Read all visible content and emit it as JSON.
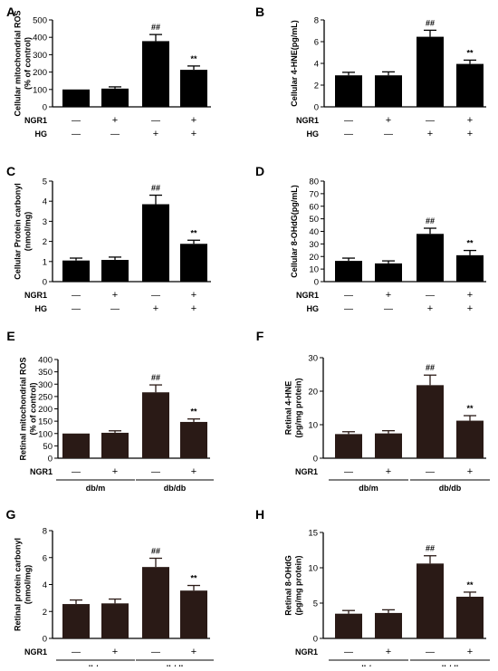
{
  "figure": {
    "sign_minus": "—",
    "sign_plus": "+",
    "colors": {
      "black_bar": "#000000",
      "brown_bar": "#2a1a16"
    }
  },
  "chart_data": [
    {
      "id": "A",
      "panel_letter": "A",
      "type": "bar",
      "ylabel": "Cellular mitochondrial ROS (% of control)",
      "ylabel_lines": [
        "Cellular mitochondrial ROS",
        "(% of control)"
      ],
      "ylim": [
        0,
        500
      ],
      "yticks": [
        0,
        100,
        200,
        300,
        400,
        500
      ],
      "grid": false,
      "values": [
        100,
        105,
        378,
        213
      ],
      "errors": [
        0,
        10,
        38,
        22
      ],
      "annotations": [
        "",
        "",
        "##",
        "**"
      ],
      "bar_color": "#000000",
      "factors": [
        {
          "label": "NGR1",
          "signs": [
            "—",
            "+",
            "—",
            "+"
          ]
        },
        {
          "label": "HG",
          "signs": [
            "—",
            "—",
            "+",
            "+"
          ]
        }
      ],
      "groups": []
    },
    {
      "id": "B",
      "panel_letter": "B",
      "type": "bar",
      "ylabel": "Cellular 4-HNE(pg/mL)",
      "ylabel_lines": [
        "Cellular 4-HNE(pg/mL)"
      ],
      "ylim": [
        0,
        8
      ],
      "yticks": [
        0,
        2,
        4,
        6,
        8
      ],
      "grid": false,
      "values": [
        2.9,
        2.9,
        6.45,
        3.95
      ],
      "errors": [
        0.28,
        0.32,
        0.6,
        0.35
      ],
      "annotations": [
        "",
        "",
        "##",
        "**"
      ],
      "bar_color": "#000000",
      "factors": [
        {
          "label": "NGR1",
          "signs": [
            "—",
            "+",
            "—",
            "+"
          ]
        },
        {
          "label": "HG",
          "signs": [
            "—",
            "—",
            "+",
            "+"
          ]
        }
      ],
      "groups": []
    },
    {
      "id": "C",
      "panel_letter": "C",
      "type": "bar",
      "ylabel": "Cellular Protein carbonyl (nmol/mg)",
      "ylabel_lines": [
        "Cellular Protein carbonyl",
        "(nmol/mg)"
      ],
      "ylim": [
        0,
        5
      ],
      "yticks": [
        0,
        1,
        2,
        3,
        4,
        5
      ],
      "grid": false,
      "values": [
        1.05,
        1.08,
        3.85,
        1.88
      ],
      "errors": [
        0.12,
        0.14,
        0.45,
        0.18
      ],
      "annotations": [
        "",
        "",
        "##",
        "**"
      ],
      "bar_color": "#000000",
      "factors": [
        {
          "label": "NGR1",
          "signs": [
            "—",
            "+",
            "—",
            "+"
          ]
        },
        {
          "label": "HG",
          "signs": [
            "—",
            "—",
            "+",
            "+"
          ]
        }
      ],
      "groups": []
    },
    {
      "id": "D",
      "panel_letter": "D",
      "type": "bar",
      "ylabel": "Cellular 8-OHdG(pg/mL)",
      "ylabel_lines": [
        "Cellular 8-OHdG(pg/mL)"
      ],
      "ylim": [
        0,
        80
      ],
      "yticks": [
        0,
        10,
        20,
        30,
        40,
        50,
        60,
        70,
        80
      ],
      "grid": false,
      "values": [
        16.5,
        14.5,
        38,
        21
      ],
      "errors": [
        2.2,
        2,
        4.5,
        3.8
      ],
      "annotations": [
        "",
        "",
        "##",
        "**"
      ],
      "bar_color": "#000000",
      "factors": [
        {
          "label": "NGR1",
          "signs": [
            "—",
            "+",
            "—",
            "+"
          ]
        },
        {
          "label": "HG",
          "signs": [
            "—",
            "—",
            "+",
            "+"
          ]
        }
      ],
      "groups": []
    },
    {
      "id": "E",
      "panel_letter": "E",
      "type": "bar",
      "ylabel": "Retinal mitochondrial ROS (% of control)",
      "ylabel_lines": [
        "Retinal mitochondrial ROS",
        "(% of control)"
      ],
      "ylim": [
        0,
        400
      ],
      "yticks": [
        0,
        50,
        100,
        150,
        200,
        250,
        300,
        350,
        400
      ],
      "grid": false,
      "values": [
        100,
        103,
        267,
        147
      ],
      "errors": [
        0,
        8,
        30,
        12
      ],
      "annotations": [
        "",
        "",
        "##",
        "**"
      ],
      "bar_color": "#2a1a16",
      "factors": [
        {
          "label": "NGR1",
          "signs": [
            "—",
            "+",
            "—",
            "+"
          ]
        }
      ],
      "groups": [
        "db/m",
        "db/db"
      ]
    },
    {
      "id": "F",
      "panel_letter": "F",
      "type": "bar",
      "ylabel": "Retinal 4-HNE (pg/mg protein)",
      "ylabel_lines": [
        "Retinal 4-HNE",
        "(pg/mg protein)"
      ],
      "ylim": [
        0,
        30
      ],
      "yticks": [
        0,
        10,
        20,
        30
      ],
      "grid": false,
      "values": [
        7.2,
        7.4,
        21.8,
        11.2
      ],
      "errors": [
        0.7,
        0.8,
        3,
        1.5
      ],
      "annotations": [
        "",
        "",
        "##",
        "**"
      ],
      "bar_color": "#2a1a16",
      "factors": [
        {
          "label": "NGR1",
          "signs": [
            "—",
            "+",
            "—",
            "+"
          ]
        }
      ],
      "groups": [
        "db/m",
        "db/db"
      ]
    },
    {
      "id": "G",
      "panel_letter": "G",
      "type": "bar",
      "ylabel": "Retinal protein carbonyl (nmol/mg)",
      "ylabel_lines": [
        "Retinal protein carbonyl",
        "(nmol/mg)"
      ],
      "ylim": [
        0,
        8
      ],
      "yticks": [
        0,
        2,
        4,
        6,
        8
      ],
      "grid": false,
      "values": [
        2.55,
        2.6,
        5.3,
        3.55
      ],
      "errors": [
        0.3,
        0.32,
        0.65,
        0.38
      ],
      "annotations": [
        "",
        "",
        "##",
        "**"
      ],
      "bar_color": "#2a1a16",
      "factors": [
        {
          "label": "NGR1",
          "signs": [
            "—",
            "+",
            "—",
            "+"
          ]
        }
      ],
      "groups": [
        "db/m",
        "db/db"
      ]
    },
    {
      "id": "H",
      "panel_letter": "H",
      "type": "bar",
      "ylabel": "Retinal 8-OHdG (pg/mg protein)",
      "ylabel_lines": [
        "Retinal 8-OHdG",
        "(pg/mg protein)"
      ],
      "ylim": [
        0,
        15
      ],
      "yticks": [
        0,
        5,
        10,
        15
      ],
      "grid": false,
      "values": [
        3.5,
        3.6,
        10.6,
        5.9
      ],
      "errors": [
        0.45,
        0.45,
        1.1,
        0.65
      ],
      "annotations": [
        "",
        "",
        "##",
        "**"
      ],
      "bar_color": "#2a1a16",
      "factors": [
        {
          "label": "NGR1",
          "signs": [
            "—",
            "+",
            "—",
            "+"
          ]
        }
      ],
      "groups": [
        "db/m",
        "db/db"
      ]
    }
  ]
}
